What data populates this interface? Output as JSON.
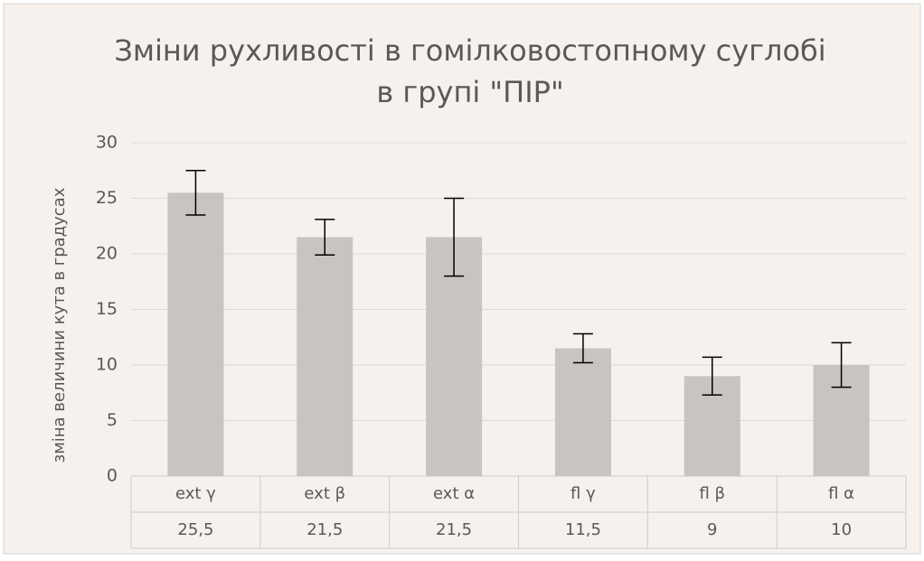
{
  "chart_data": {
    "type": "bar",
    "title": [
      "Зміни рухливості в гомілковостопному суглобі",
      "в групі \"ПІР\""
    ],
    "y_label": "зміна величини кута в градусах",
    "categories": [
      "ext γ",
      "ext β",
      "ext α",
      "fl γ",
      "fl β",
      "fl α"
    ],
    "values": [
      25.5,
      21.5,
      21.5,
      11.5,
      9,
      10
    ],
    "value_labels": [
      "25,5",
      "21,5",
      "21,5",
      "11,5",
      "9",
      "10"
    ],
    "errors": [
      2,
      1.6,
      3.5,
      1.3,
      1.7,
      2
    ],
    "color": "#c9c4bf",
    "ylim": [
      0,
      30
    ],
    "yticks": [
      0,
      5,
      10,
      15,
      20,
      25,
      30
    ],
    "grid": true
  }
}
